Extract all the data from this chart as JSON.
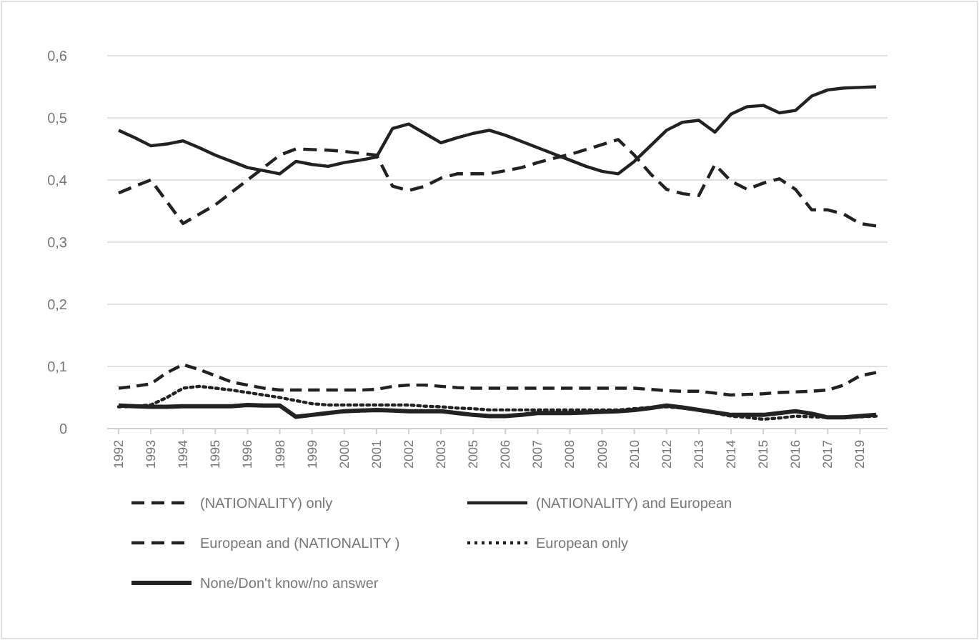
{
  "chart_data": {
    "type": "line",
    "categories": [
      "1992",
      null,
      "1993",
      null,
      "1994",
      null,
      "1995",
      null,
      "1996",
      null,
      "1998",
      null,
      "1999",
      null,
      "2000",
      null,
      "2001",
      null,
      "2002",
      null,
      "2003",
      null,
      "2005",
      null,
      "2006",
      null,
      "2007",
      null,
      "2008",
      null,
      "2009",
      null,
      "2010",
      null,
      "2012",
      null,
      "2013",
      null,
      "2014",
      null,
      "2015",
      null,
      "2016",
      null,
      "2017",
      null,
      "2019",
      null
    ],
    "series": [
      {
        "name": "(NATIONALITY) only",
        "color": "#222222",
        "line_style": "dashed",
        "values": [
          0.379,
          0.39,
          0.4,
          0.365,
          0.33,
          0.345,
          0.36,
          0.38,
          0.4,
          0.42,
          0.44,
          0.45,
          0.449,
          0.448,
          0.446,
          0.443,
          0.44,
          0.39,
          0.383,
          0.39,
          0.403,
          0.41,
          0.41,
          0.41,
          0.415,
          0.42,
          0.428,
          0.435,
          0.441,
          0.449,
          0.457,
          0.465,
          0.44,
          0.41,
          0.385,
          0.378,
          0.375,
          0.425,
          0.398,
          0.385,
          0.395,
          0.402,
          0.385,
          0.352,
          0.352,
          0.345,
          0.33,
          0.326
        ]
      },
      {
        "name": "(NATIONALITY) and European",
        "color": "#222222",
        "line_style": "solid",
        "values": [
          0.48,
          0.468,
          0.455,
          0.458,
          0.463,
          0.452,
          0.44,
          0.43,
          0.42,
          0.415,
          0.41,
          0.43,
          0.425,
          0.422,
          0.428,
          0.432,
          0.437,
          0.483,
          0.49,
          0.475,
          0.46,
          0.468,
          0.475,
          0.48,
          0.472,
          0.462,
          0.452,
          0.442,
          0.432,
          0.422,
          0.414,
          0.41,
          0.43,
          0.455,
          0.48,
          0.493,
          0.496,
          0.477,
          0.506,
          0.518,
          0.52,
          0.508,
          0.512,
          0.535,
          0.545,
          0.548,
          0.549,
          0.55
        ]
      },
      {
        "name": "European and (NATIONALITY )",
        "color": "#222222",
        "line_style": "dashed",
        "values": [
          0.065,
          0.068,
          0.072,
          0.09,
          0.103,
          0.095,
          0.085,
          0.075,
          0.07,
          0.065,
          0.062,
          0.062,
          0.062,
          0.062,
          0.062,
          0.062,
          0.063,
          0.068,
          0.07,
          0.07,
          0.068,
          0.066,
          0.065,
          0.065,
          0.065,
          0.065,
          0.065,
          0.065,
          0.065,
          0.065,
          0.065,
          0.065,
          0.065,
          0.063,
          0.061,
          0.06,
          0.06,
          0.057,
          0.054,
          0.055,
          0.056,
          0.058,
          0.059,
          0.06,
          0.062,
          0.07,
          0.085,
          0.09
        ]
      },
      {
        "name": "European only",
        "color": "#222222",
        "line_style": "dotted",
        "values": [
          0.035,
          0.036,
          0.038,
          0.05,
          0.065,
          0.068,
          0.065,
          0.062,
          0.058,
          0.054,
          0.05,
          0.045,
          0.04,
          0.038,
          0.038,
          0.038,
          0.038,
          0.038,
          0.038,
          0.036,
          0.035,
          0.033,
          0.032,
          0.03,
          0.03,
          0.03,
          0.03,
          0.03,
          0.03,
          0.03,
          0.03,
          0.03,
          0.032,
          0.034,
          0.035,
          0.033,
          0.03,
          0.025,
          0.02,
          0.018,
          0.015,
          0.017,
          0.02,
          0.019,
          0.018,
          0.018,
          0.019,
          0.02
        ]
      },
      {
        "name": "None/Don't know/no answer",
        "color": "#222222",
        "line_style": "solid",
        "values": [
          0.037,
          0.036,
          0.035,
          0.035,
          0.036,
          0.036,
          0.036,
          0.036,
          0.038,
          0.037,
          0.037,
          0.019,
          0.022,
          0.025,
          0.028,
          0.029,
          0.03,
          0.029,
          0.028,
          0.028,
          0.028,
          0.025,
          0.022,
          0.02,
          0.02,
          0.022,
          0.025,
          0.025,
          0.025,
          0.026,
          0.027,
          0.028,
          0.03,
          0.033,
          0.037,
          0.034,
          0.03,
          0.026,
          0.022,
          0.022,
          0.022,
          0.025,
          0.028,
          0.024,
          0.018,
          0.018,
          0.02,
          0.022
        ]
      }
    ],
    "ylim": [
      0,
      0.6
    ],
    "yticks": [
      0,
      {
        "value": 0.1,
        "label": "0,1"
      },
      {
        "value": 0.2,
        "label": "0,2"
      },
      {
        "value": 0.3,
        "label": "0,3"
      },
      {
        "value": 0.4,
        "label": "0,4"
      },
      {
        "value": 0.5,
        "label": "0,5"
      },
      {
        "value": 0.6,
        "label": "0,6"
      }
    ],
    "grid": "y",
    "legend": "bottom"
  }
}
